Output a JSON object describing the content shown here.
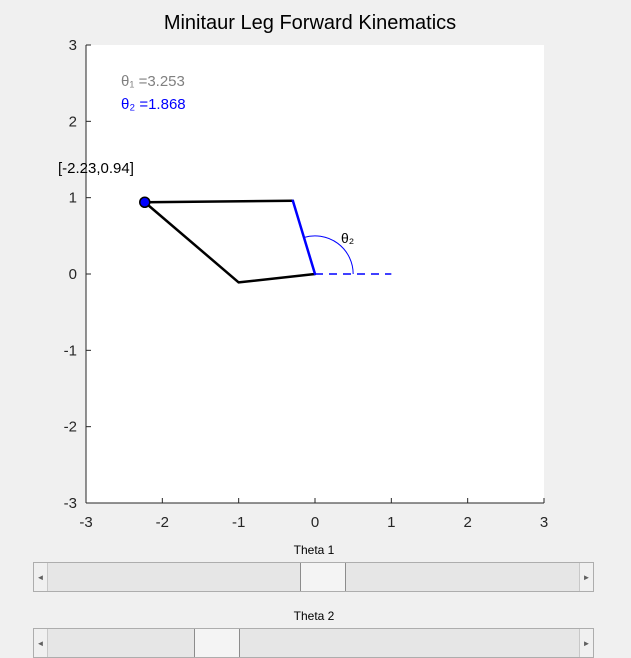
{
  "figure": {
    "title": "Minitaur Leg Forward Kinematics",
    "xticks": [
      "-3",
      "-2",
      "-1",
      "0",
      "1",
      "2",
      "3"
    ],
    "yticks": [
      "3",
      "2",
      "1",
      "0",
      "-1",
      "-2",
      "-3"
    ],
    "theta1_text": "θ₁ =3.253",
    "theta2_text": "θ₂ =1.868",
    "theta2_arc_label": "θ₂",
    "foot_coord_label": "[-2.23,0.94]",
    "colors": {
      "theta1_text": "#808080",
      "theta2": "#0000ff",
      "link": "#000000",
      "foot_marker": "#0000ff"
    }
  },
  "chart_data": {
    "type": "line",
    "title": "Minitaur Leg Forward Kinematics",
    "xlim": [
      -3,
      3
    ],
    "ylim": [
      -3,
      3
    ],
    "grid": false,
    "annotations": [
      "θ₁ =3.253",
      "θ₂ =1.868",
      "[-2.23,0.94]",
      "θ₂"
    ],
    "series": [
      {
        "style": "solid",
        "color": "#000000",
        "x": [
          -2.23,
          -1.0,
          0.0
        ],
        "y": [
          0.94,
          -0.11,
          0.0
        ]
      },
      {
        "style": "solid",
        "color": "#000000",
        "x": [
          -2.23,
          -0.29
        ],
        "y": [
          0.94,
          0.96
        ]
      },
      {
        "style": "solid",
        "color": "#0000ff",
        "x": [
          -0.29,
          0.0
        ],
        "y": [
          0.96,
          0.0
        ]
      },
      {
        "style": "dashed",
        "color": "#0000ff",
        "x": [
          0.0,
          1.0
        ],
        "y": [
          0.0,
          0.0
        ]
      }
    ],
    "points": [
      {
        "x": -2.23,
        "y": 0.94,
        "color": "#0000ff"
      }
    ]
  },
  "sliders": [
    {
      "label": "Theta 1",
      "left_arrow": "◄",
      "right_arrow": "►",
      "value_fraction": 0.52
    },
    {
      "label": "Theta 2",
      "left_arrow": "◄",
      "right_arrow": "►",
      "value_fraction": 0.3
    }
  ]
}
